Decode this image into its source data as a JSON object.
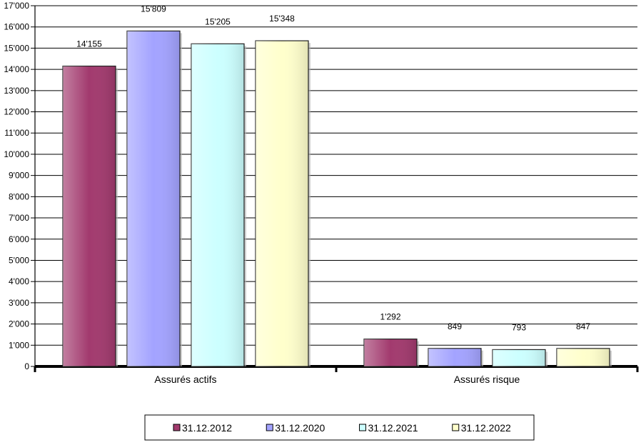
{
  "chart_data": {
    "type": "bar",
    "title": "",
    "xlabel": "",
    "ylabel": "",
    "categories": [
      "Assurés actifs",
      "Assurés risque"
    ],
    "series": [
      {
        "name": "31.12.2012",
        "values": [
          14155,
          1292
        ],
        "color": "#a23a6e",
        "value_labels": [
          "14'155",
          "1'292"
        ]
      },
      {
        "name": "31.12.2020",
        "values": [
          15809,
          849
        ],
        "color": "#a3a3ff",
        "value_labels": [
          "15'809",
          "849"
        ]
      },
      {
        "name": "31.12.2021",
        "values": [
          15205,
          793
        ],
        "color": "#ccffff",
        "value_labels": [
          "15'205",
          "793"
        ]
      },
      {
        "name": "31.12.2022",
        "values": [
          15348,
          847
        ],
        "color": "#ffffcc",
        "value_labels": [
          "15'348",
          "847"
        ]
      }
    ],
    "ylim": [
      0,
      17000
    ],
    "y_ticks": [
      {
        "value": 0,
        "label": "0"
      },
      {
        "value": 1000,
        "label": "1'000"
      },
      {
        "value": 2000,
        "label": "2'000"
      },
      {
        "value": 3000,
        "label": "3'000"
      },
      {
        "value": 4000,
        "label": "4'000"
      },
      {
        "value": 5000,
        "label": "5'000"
      },
      {
        "value": 6000,
        "label": "6'000"
      },
      {
        "value": 7000,
        "label": "7'000"
      },
      {
        "value": 8000,
        "label": "8'000"
      },
      {
        "value": 9000,
        "label": "9'000"
      },
      {
        "value": 10000,
        "label": "10'000"
      },
      {
        "value": 11000,
        "label": "11'000"
      },
      {
        "value": 12000,
        "label": "12'000"
      },
      {
        "value": 13000,
        "label": "13'000"
      },
      {
        "value": 14000,
        "label": "14'000"
      },
      {
        "value": 15000,
        "label": "15'000"
      },
      {
        "value": 16000,
        "label": "16'000"
      },
      {
        "value": 17000,
        "label": "17'000"
      }
    ],
    "grid": true,
    "legend_position": "bottom"
  }
}
